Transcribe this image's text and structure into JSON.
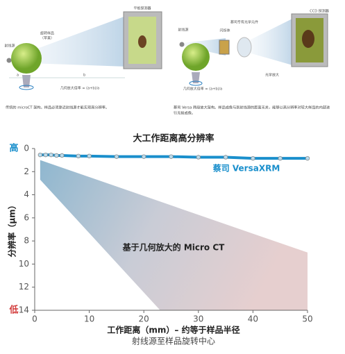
{
  "diagrams": {
    "left": {
      "detector": "平板探测器",
      "source": "射线源",
      "sample": [
        "旋转样品",
        "（苹果）"
      ],
      "a": "a",
      "b": "b",
      "magnification": "几何放大倍率 = (a+b)/a",
      "caption": "传统的 microCT 架构。样品必须靠近射线源才能实现高分辨率。"
    },
    "right": {
      "detector": "CCD 探测器",
      "source": "射线源",
      "scintillator": "闪烁体",
      "optics": "蔡司专有光学元件",
      "optical": "光学放大",
      "magnification": "几何放大倍率 = (a+b)/a",
      "caption": [
        "蔡司 Versa 两级放大架构。样品成像与到射线源的距离无关，能够以高分辨率对较大样品的内部进",
        "行无损成像。"
      ]
    }
  },
  "chart_data": {
    "type": "line",
    "title": "大工作距离高分辨率",
    "x_label": "工作距离（mm）– 约等于样品半径",
    "x_sublabel": "射线源至样品旋转中心",
    "y_label": "分辨率（μm）",
    "y_top_label": "高",
    "y_bottom_label": "低",
    "xlim": [
      0,
      50
    ],
    "xticks": [
      0,
      10,
      20,
      30,
      40,
      50
    ],
    "ylim": [
      0,
      14
    ],
    "yticks": [
      0,
      2,
      4,
      6,
      8,
      10,
      12,
      14
    ],
    "y_inverted": true,
    "series": [
      {
        "name": "蔡司 VersaXRM",
        "color": "#1a8fcc",
        "x": [
          1,
          2,
          3,
          4,
          5,
          8,
          10,
          15,
          20,
          25,
          30,
          35,
          40,
          45,
          50
        ],
        "values": [
          0.55,
          0.55,
          0.55,
          0.6,
          0.6,
          0.65,
          0.65,
          0.7,
          0.7,
          0.7,
          0.75,
          0.75,
          0.85,
          0.85,
          0.85
        ]
      }
    ],
    "region": {
      "name": "基于几何放大的 Micro CT",
      "x": [
        1,
        50,
        50,
        23,
        1
      ],
      "y": [
        1,
        9,
        14,
        14,
        2.7
      ]
    }
  }
}
